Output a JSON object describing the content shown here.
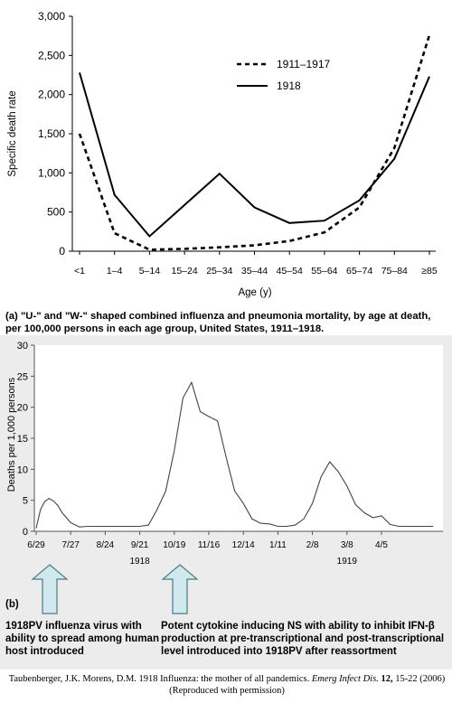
{
  "chart_data": [
    {
      "type": "line",
      "ylabel": "Specific death rate",
      "xlabel": "Age (y)",
      "categories": [
        "<1",
        "1–4",
        "5–14",
        "15–24",
        "25–34",
        "35–44",
        "45–54",
        "55–64",
        "65–74",
        "75–84",
        "≥85"
      ],
      "yticks": [
        "0",
        "500",
        "1,000",
        "1,500",
        "2,000",
        "2,500",
        "3,000"
      ],
      "ylim": [
        0,
        3000
      ],
      "legend_position": "top-right",
      "series": [
        {
          "name": "1911–1917",
          "style": "dashed",
          "values": [
            1500,
            230,
            20,
            30,
            50,
            75,
            130,
            240,
            560,
            1320,
            2760
          ]
        },
        {
          "name": "1918",
          "style": "solid",
          "values": [
            2280,
            720,
            190,
            590,
            990,
            560,
            360,
            390,
            650,
            1180,
            2230
          ]
        }
      ],
      "caption": "(a) \"U-\" and \"W-\" shaped combined influenza and pneumonia mortality, by age at death, per 100,000 persons in each age group, United States, 1911–1918."
    },
    {
      "type": "line",
      "ylabel": "Deaths per 1,000 persons",
      "ylim": [
        0,
        30
      ],
      "yticks": [
        "0",
        "5",
        "10",
        "15",
        "20",
        "25",
        "30"
      ],
      "xlim_weeks": [
        0,
        46
      ],
      "xticks": [
        {
          "label": "6/29",
          "week": 0
        },
        {
          "label": "7/27",
          "week": 4
        },
        {
          "label": "8/24",
          "week": 8
        },
        {
          "label": "9/21",
          "week": 12
        },
        {
          "label": "10/19",
          "week": 16
        },
        {
          "label": "11/16",
          "week": 20
        },
        {
          "label": "12/14",
          "week": 24
        },
        {
          "label": "1/11",
          "week": 28
        },
        {
          "label": "2/8",
          "week": 32
        },
        {
          "label": "3/8",
          "week": 36
        },
        {
          "label": "4/5",
          "week": 40
        }
      ],
      "year_labels": [
        {
          "label": "1918",
          "week": 12
        },
        {
          "label": "1919",
          "week": 36
        }
      ],
      "series": [
        {
          "weeks": [
            0,
            0.5,
            1,
            1.5,
            2,
            2.5,
            3,
            4,
            5,
            6,
            7,
            8,
            9,
            10,
            11,
            12,
            13,
            14,
            15,
            16,
            17,
            18,
            19,
            20,
            21,
            22,
            23,
            24,
            25,
            26,
            27,
            28,
            29,
            30,
            31,
            32,
            33,
            34,
            35,
            36,
            37,
            38,
            39,
            40,
            41,
            42,
            43,
            44,
            45,
            46
          ],
          "values": [
            0.5,
            3.5,
            4.8,
            5.3,
            4.9,
            4.2,
            3.0,
            1.4,
            0.7,
            0.8,
            0.8,
            0.8,
            0.8,
            0.8,
            0.8,
            0.8,
            1.0,
            3.5,
            6.5,
            13.0,
            21.5,
            24.0,
            19.3,
            18.5,
            17.8,
            12.0,
            6.5,
            4.5,
            2.0,
            1.3,
            1.2,
            0.8,
            0.8,
            1.0,
            2.0,
            4.5,
            8.8,
            11.2,
            9.6,
            7.3,
            4.3,
            3.0,
            2.2,
            2.5,
            1.1,
            0.8,
            0.8,
            0.8,
            0.8,
            0.8
          ]
        }
      ],
      "caption_label": "(b)"
    }
  ],
  "annotations": {
    "arrow_color": "#cfe9ee",
    "arrow_border": "#4a7b83",
    "arrow1_text": "1918PV influenza virus with ability to spread among human host introduced",
    "arrow2_text": "Potent cytokine inducing NS with ability to inhibit IFN-β production at pre-transcriptional and post-transcriptional level introduced into 1918PV after reassortment"
  },
  "citation": {
    "authors": "Taubenberger, J.K. Morens, D.M. 1918 Influenza: the mother of all pandemics.",
    "journal": "Emerg Infect Dis.",
    "volume": "12,",
    "pages": "15-22 (2006) (Reproduced with permission)"
  }
}
